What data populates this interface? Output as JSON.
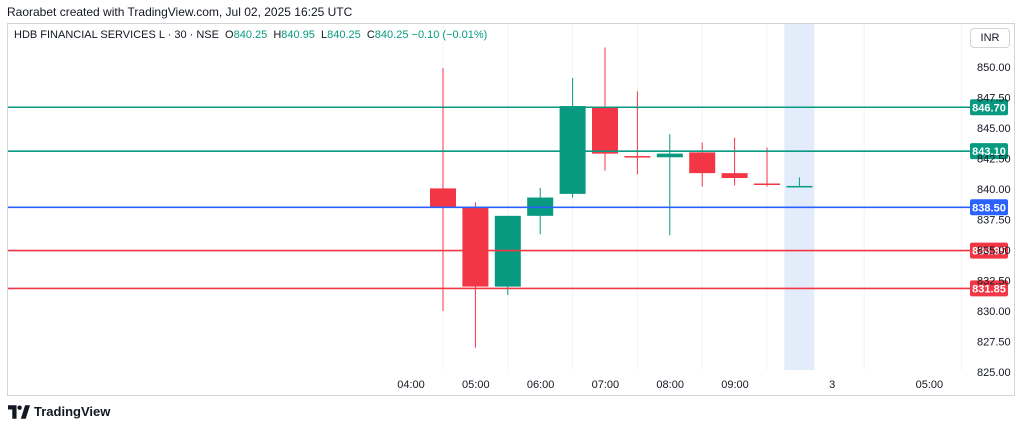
{
  "header": {
    "text": "Raorabet created with TradingView.com, Jul 02, 2025 16:25 UTC"
  },
  "legend": {
    "symbol": "HDB FINANCIAL SERVICES L · 30 · NSE",
    "open_label": "O",
    "open": "840.25",
    "high_label": "H",
    "high": "840.95",
    "low_label": "L",
    "low": "840.25",
    "close_label": "C",
    "close": "840.25",
    "change": "−0.10 (−0.01%)"
  },
  "currency": "INR",
  "footer": {
    "brand": "TradingView"
  },
  "colors": {
    "up": "#089981",
    "down": "#f23645",
    "support": "#2962ff",
    "session_highlight": "#e3ecfb"
  },
  "chart_data": {
    "type": "candlestick",
    "y_range": [
      825,
      851
    ],
    "y_ticks": [
      "850.00",
      "847.50",
      "845.00",
      "842.50",
      "840.00",
      "837.50",
      "835.00",
      "832.50",
      "830.00",
      "827.50",
      "825.00"
    ],
    "y_tick_values": [
      850,
      847.5,
      845,
      842.5,
      840,
      837.5,
      835,
      832.5,
      830,
      827.5,
      825
    ],
    "x_ticks": [
      {
        "label": "04:00",
        "slot": 0
      },
      {
        "label": "05:00",
        "slot": 2
      },
      {
        "label": "06:00",
        "slot": 4
      },
      {
        "label": "07:00",
        "slot": 6
      },
      {
        "label": "08:00",
        "slot": 8
      },
      {
        "label": "09:00",
        "slot": 10
      },
      {
        "label": "3",
        "slot": 13
      },
      {
        "label": "05:00",
        "slot": 16
      }
    ],
    "candles": [
      {
        "slot": 0,
        "open": 840.05,
        "high": 849.9,
        "low": 830.0,
        "close": 838.55
      },
      {
        "slot": 1,
        "open": 838.5,
        "high": 838.9,
        "low": 827.0,
        "close": 832.0
      },
      {
        "slot": 2,
        "open": 832.0,
        "high": 837.8,
        "low": 831.3,
        "close": 837.8
      },
      {
        "slot": 3,
        "open": 837.8,
        "high": 840.1,
        "low": 836.3,
        "close": 839.3
      },
      {
        "slot": 4,
        "open": 839.6,
        "high": 849.1,
        "low": 839.3,
        "close": 846.8
      },
      {
        "slot": 5,
        "open": 846.75,
        "high": 851.6,
        "low": 841.5,
        "close": 842.9
      },
      {
        "slot": 6,
        "open": 842.7,
        "high": 848.0,
        "low": 841.2,
        "close": 842.65
      },
      {
        "slot": 7,
        "open": 842.6,
        "high": 844.5,
        "low": 836.2,
        "close": 842.9
      },
      {
        "slot": 8,
        "open": 843.0,
        "high": 843.8,
        "low": 840.2,
        "close": 841.3
      },
      {
        "slot": 9,
        "open": 841.3,
        "high": 844.2,
        "low": 840.3,
        "close": 840.9
      },
      {
        "slot": 10,
        "open": 840.45,
        "high": 843.4,
        "low": 840.2,
        "close": 840.35
      },
      {
        "slot": 11,
        "open": 840.25,
        "high": 840.95,
        "low": 840.25,
        "close": 840.25
      }
    ],
    "highlight_slot": 11,
    "levels": [
      {
        "value": 846.7,
        "label": "846.70",
        "color": "#089981"
      },
      {
        "value": 843.1,
        "label": "843.10",
        "color": "#089981"
      },
      {
        "value": 838.5,
        "label": "838.50",
        "color": "#2962ff"
      },
      {
        "value": 834.95,
        "label": "834.95",
        "color": "#f23645"
      },
      {
        "value": 831.85,
        "label": "831.85",
        "color": "#f23645"
      }
    ]
  }
}
